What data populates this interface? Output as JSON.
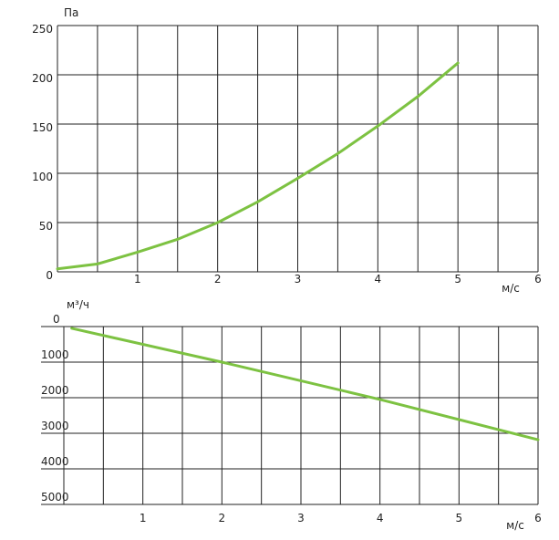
{
  "chart_data": [
    {
      "type": "line",
      "ylabel": "Па",
      "xlabel": "м/с",
      "xlim": [
        0,
        6
      ],
      "xticks": [
        1,
        2,
        3,
        4,
        5,
        6
      ],
      "xminor": [
        0.5,
        1.5,
        2.5,
        3.5,
        4.5,
        5.5
      ],
      "ylim": [
        0,
        250
      ],
      "yticks": [
        0,
        50,
        100,
        150,
        200,
        250
      ],
      "grid": true,
      "series": [
        {
          "color": "#7dc242",
          "x": [
            0,
            0.5,
            1,
            1.5,
            2,
            2.5,
            3,
            3.5,
            4,
            4.5,
            5
          ],
          "values": [
            3,
            8,
            20,
            33,
            50,
            71,
            95,
            120,
            148,
            178,
            212
          ]
        }
      ]
    },
    {
      "type": "line",
      "ylabel": "м³/ч",
      "xlabel": "м/с",
      "xlim": [
        0,
        6
      ],
      "xticks": [
        1,
        2,
        3,
        4,
        5,
        6
      ],
      "xminor": [
        0.5,
        1.5,
        2.5,
        3.5,
        4.5,
        5.5
      ],
      "ylim": [
        0,
        5000
      ],
      "yticks": [
        0,
        1000,
        2000,
        3000,
        4000,
        5000
      ],
      "y_inverted": true,
      "grid": true,
      "series": [
        {
          "color": "#7dc242",
          "x": [
            0.1,
            2,
            4,
            6
          ],
          "values": [
            50,
            1000,
            2050,
            3180
          ]
        }
      ]
    }
  ]
}
